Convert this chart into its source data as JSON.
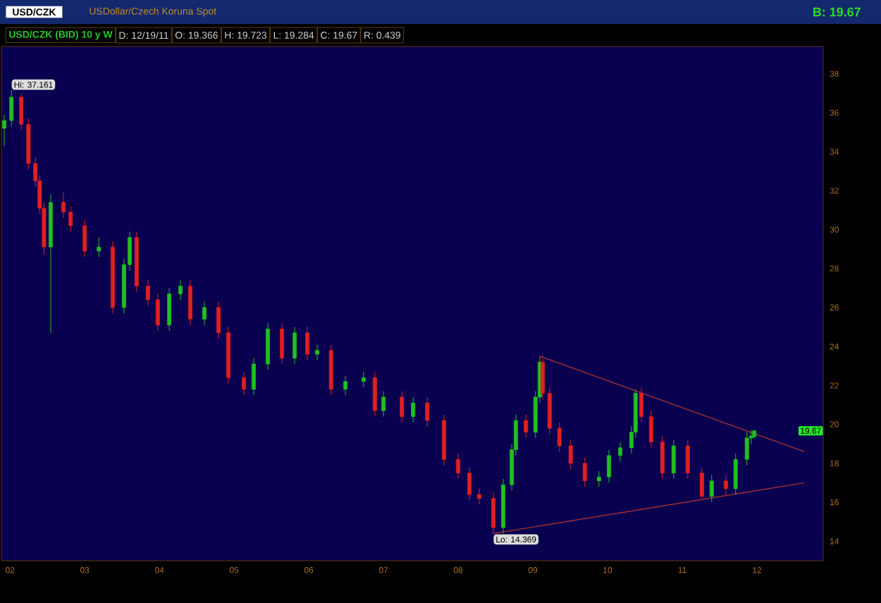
{
  "chart_data": {
    "type": "candlestick",
    "title": "USD/CZK (BID) 10 y W",
    "subtitle": "USDollar/Czech Koruna Spot",
    "annotations": [
      "USD/CZK",
      "B: 19.67",
      "D: 12/19/11",
      "O: 19.366",
      "H: 19.723",
      "L: 19.284",
      "C: 19.67",
      "R: 0.439",
      {
        "text": "Hi: 37.161",
        "x": "2002-01-08",
        "y": 37.161
      },
      {
        "text": "Lo: 14.369",
        "x": "2008-06-21",
        "y": 14.369
      },
      {
        "text": "19.67",
        "y": 19.67
      }
    ],
    "x": [
      "2001-12-04",
      "2002-01-08",
      "2002-02-25",
      "2002-04-01",
      "2002-05-05",
      "2002-05-26",
      "2002-06-16",
      "2002-07-19",
      "2002-09-19",
      "2002-10-24",
      "2003-01-01",
      "2003-03-11",
      "2003-05-18",
      "2003-07-12",
      "2003-08-09",
      "2003-09-12",
      "2003-11-06",
      "2003-12-24",
      "2004-02-18",
      "2004-04-13",
      "2004-05-31",
      "2004-08-08",
      "2004-10-16",
      "2004-12-03",
      "2005-02-18",
      "2005-04-07",
      "2005-06-15",
      "2005-08-23",
      "2005-10-24",
      "2005-12-25",
      "2006-02-11",
      "2006-04-20",
      "2006-06-29",
      "2006-09-26",
      "2006-11-20",
      "2007-01-01",
      "2007-04-01",
      "2007-05-26",
      "2007-08-03",
      "2007-10-24",
      "2008-01-01",
      "2008-02-25",
      "2008-04-13",
      "2008-06-21",
      "2008-08-08",
      "2008-09-19",
      "2008-10-09",
      "2008-11-27",
      "2009-01-14",
      "2009-02-04",
      "2009-02-18",
      "2009-03-24",
      "2009-05-11",
      "2009-07-05",
      "2009-09-12",
      "2009-11-20",
      "2010-01-08",
      "2010-03-04",
      "2010-04-28",
      "2010-05-18",
      "2010-06-15",
      "2010-08-02",
      "2010-09-26",
      "2010-11-20",
      "2011-01-28",
      "2011-04-07",
      "2011-05-25",
      "2011-08-02",
      "2011-09-19",
      "2011-11-13",
      "2011-12-04",
      "2011-12-19"
    ],
    "ohlc": [
      [
        35.2,
        35.9,
        34.3,
        35.6
      ],
      [
        35.6,
        37.161,
        35.3,
        36.8
      ],
      [
        36.8,
        37.0,
        35.1,
        35.4
      ],
      [
        35.4,
        35.7,
        33.1,
        33.4
      ],
      [
        33.4,
        33.7,
        32.2,
        32.5
      ],
      [
        32.5,
        32.8,
        30.8,
        31.1
      ],
      [
        31.1,
        31.4,
        28.7,
        29.1
      ],
      [
        29.1,
        31.8,
        24.7,
        31.4
      ],
      [
        31.4,
        31.9,
        30.6,
        30.9
      ],
      [
        30.9,
        31.2,
        29.9,
        30.2
      ],
      [
        30.2,
        30.5,
        28.6,
        28.9
      ],
      [
        28.9,
        29.6,
        28.6,
        29.1
      ],
      [
        29.1,
        29.4,
        25.7,
        26.0
      ],
      [
        26.0,
        28.5,
        25.7,
        28.2
      ],
      [
        28.2,
        29.9,
        27.9,
        29.6
      ],
      [
        29.6,
        29.9,
        26.8,
        27.1
      ],
      [
        27.1,
        27.4,
        26.1,
        26.4
      ],
      [
        26.4,
        26.7,
        24.8,
        25.1
      ],
      [
        25.1,
        27.0,
        24.8,
        26.7
      ],
      [
        26.7,
        27.4,
        26.4,
        27.1
      ],
      [
        27.1,
        27.4,
        25.1,
        25.4
      ],
      [
        25.4,
        26.3,
        25.1,
        26.0
      ],
      [
        26.0,
        26.3,
        24.4,
        24.7
      ],
      [
        24.7,
        25.0,
        22.1,
        22.4
      ],
      [
        22.4,
        22.7,
        21.5,
        21.8
      ],
      [
        21.8,
        23.4,
        21.5,
        23.1
      ],
      [
        23.1,
        25.2,
        22.8,
        24.9
      ],
      [
        24.9,
        25.2,
        23.1,
        23.4
      ],
      [
        23.4,
        25.0,
        23.1,
        24.7
      ],
      [
        24.7,
        25.0,
        23.3,
        23.6
      ],
      [
        23.6,
        24.1,
        23.3,
        23.8
      ],
      [
        23.8,
        24.1,
        21.5,
        21.8
      ],
      [
        21.8,
        22.5,
        21.5,
        22.2
      ],
      [
        22.2,
        22.7,
        21.9,
        22.4
      ],
      [
        22.4,
        22.7,
        20.4,
        20.7
      ],
      [
        20.7,
        21.7,
        20.4,
        21.4
      ],
      [
        21.4,
        21.7,
        20.1,
        20.4
      ],
      [
        20.4,
        21.4,
        20.1,
        21.1
      ],
      [
        21.1,
        21.4,
        19.9,
        20.2
      ],
      [
        20.2,
        20.5,
        17.9,
        18.2
      ],
      [
        18.2,
        18.5,
        17.2,
        17.5
      ],
      [
        17.5,
        17.8,
        16.1,
        16.4
      ],
      [
        16.4,
        16.7,
        15.9,
        16.2
      ],
      [
        16.2,
        16.5,
        14.369,
        14.7
      ],
      [
        14.7,
        17.2,
        14.4,
        16.9
      ],
      [
        16.9,
        19.0,
        16.6,
        18.7
      ],
      [
        18.7,
        20.5,
        18.4,
        20.2
      ],
      [
        20.2,
        20.5,
        19.3,
        19.6
      ],
      [
        19.6,
        21.7,
        19.3,
        21.4
      ],
      [
        21.4,
        23.5,
        21.1,
        23.2
      ],
      [
        23.2,
        23.5,
        21.3,
        21.6
      ],
      [
        21.6,
        21.9,
        19.5,
        19.8
      ],
      [
        19.8,
        20.1,
        18.6,
        18.9
      ],
      [
        18.9,
        19.2,
        17.7,
        18.0
      ],
      [
        18.0,
        18.3,
        16.8,
        17.1
      ],
      [
        17.1,
        17.6,
        16.8,
        17.3
      ],
      [
        17.3,
        18.7,
        17.0,
        18.4
      ],
      [
        18.4,
        19.1,
        18.1,
        18.8
      ],
      [
        18.8,
        19.9,
        18.5,
        19.6
      ],
      [
        19.6,
        21.8,
        19.3,
        21.6
      ],
      [
        21.6,
        21.9,
        20.1,
        20.4
      ],
      [
        20.4,
        20.7,
        18.8,
        19.1
      ],
      [
        19.1,
        19.4,
        17.2,
        17.5
      ],
      [
        17.5,
        19.2,
        17.2,
        18.9
      ],
      [
        18.9,
        19.2,
        17.2,
        17.5
      ],
      [
        17.5,
        17.8,
        16.2,
        16.3
      ],
      [
        16.3,
        17.4,
        16.0,
        17.1
      ],
      [
        17.1,
        17.4,
        16.4,
        16.7
      ],
      [
        16.7,
        18.5,
        16.4,
        18.2
      ],
      [
        18.2,
        19.6,
        17.9,
        19.3
      ],
      [
        19.3,
        19.7,
        19.0,
        19.4
      ],
      [
        19.366,
        19.723,
        19.284,
        19.67
      ]
    ],
    "series": [
      {
        "type": "line",
        "color": "#a03030",
        "x": [
          "2009-02-04",
          "2012-08-20"
        ],
        "values": [
          23.5,
          18.6
        ]
      },
      {
        "type": "line",
        "color": "#a03030",
        "x": [
          "2008-06-21",
          "2012-08-20"
        ],
        "values": [
          14.4,
          17.0
        ]
      }
    ],
    "xlim": [
      "2001-11-20",
      "2012-11-20"
    ],
    "xticks": [
      {
        "value": "2002",
        "label": "02"
      },
      {
        "value": "2003",
        "label": "03"
      },
      {
        "value": "2004",
        "label": "04"
      },
      {
        "value": "2005",
        "label": "05"
      },
      {
        "value": "2006",
        "label": "06"
      },
      {
        "value": "2007",
        "label": "07"
      },
      {
        "value": "2008",
        "label": "08"
      },
      {
        "value": "2009",
        "label": "09"
      },
      {
        "value": "2010",
        "label": "10"
      },
      {
        "value": "2011",
        "label": "11"
      },
      {
        "value": "2012",
        "label": "12"
      }
    ],
    "ylim": [
      13,
      39.4
    ],
    "yticks": [
      14,
      16,
      18,
      20,
      22,
      24,
      26,
      28,
      30,
      32,
      34,
      36,
      38
    ],
    "grid": false
  }
}
